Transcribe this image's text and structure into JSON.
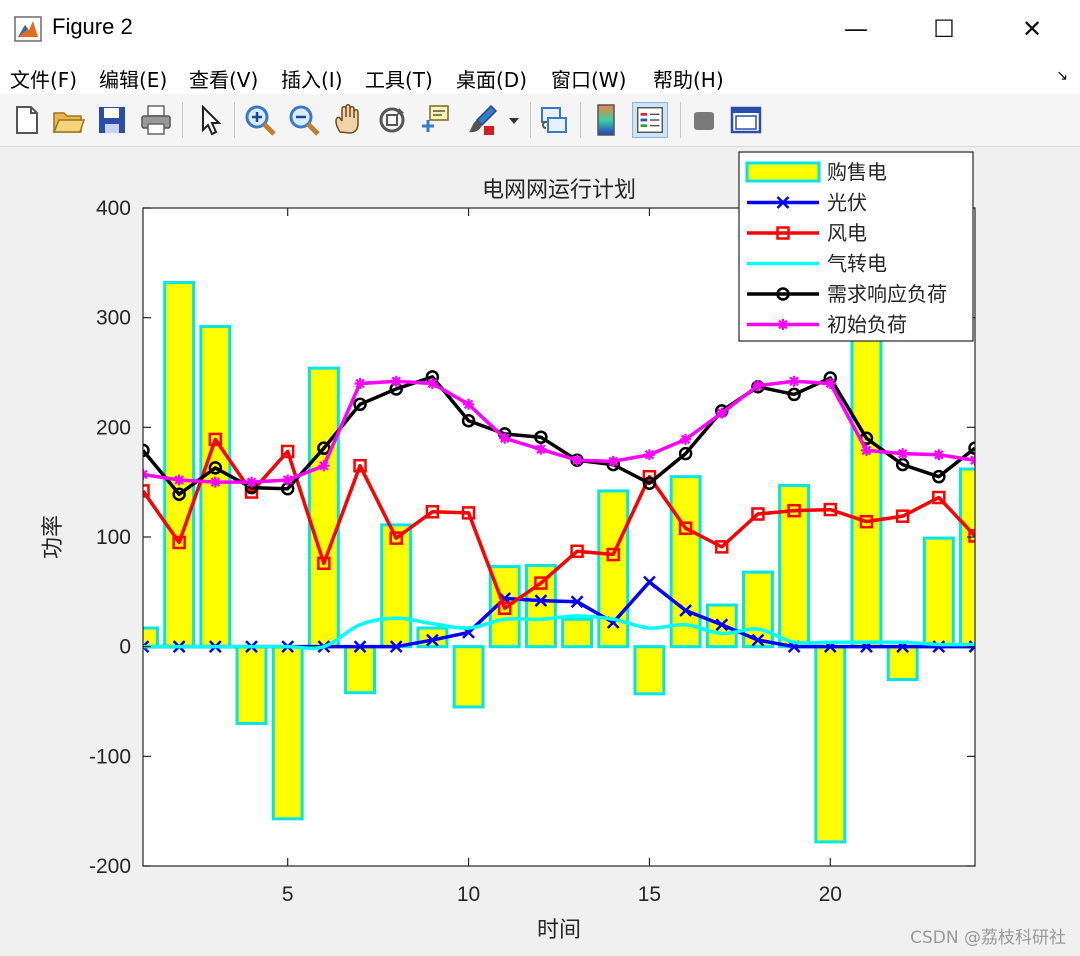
{
  "window": {
    "title": "Figure 2",
    "controls": {
      "minimize": "—",
      "maximize": "☐",
      "close": "✕"
    }
  },
  "menu": [
    "文件(F)",
    "编辑(E)",
    "查看(V)",
    "插入(I)",
    "工具(T)",
    "桌面(D)",
    "窗口(W)",
    "帮助(H)"
  ],
  "menu_overflow_glyph": "↘",
  "toolbar": [
    {
      "name": "new-figure-icon",
      "color": "#ffffff"
    },
    {
      "name": "open-file-icon",
      "color": "#e8b84a"
    },
    {
      "name": "save-icon",
      "color": "#2b4fa8"
    },
    {
      "name": "print-icon",
      "color": "#808080"
    },
    {
      "name": "pointer-icon",
      "color": "#333333"
    },
    {
      "name": "zoom-in-icon",
      "color": "#3a78c8"
    },
    {
      "name": "zoom-out-icon",
      "color": "#3a78c8"
    },
    {
      "name": "pan-hand-icon",
      "color": "#e0b080"
    },
    {
      "name": "rotate-3d-icon",
      "color": "#555555"
    },
    {
      "name": "data-cursor-icon",
      "color": "#e0c050"
    },
    {
      "name": "brush-icon",
      "color": "#d02020"
    },
    {
      "name": "link-plot-icon",
      "color": "#3a78c8"
    },
    {
      "name": "colorbar-icon",
      "color": "#f08040"
    },
    {
      "name": "legend-icon",
      "color": "#d03030"
    },
    {
      "name": "hide-tools-icon",
      "color": "#707070"
    },
    {
      "name": "dock-icon",
      "color": "#2b4fa8"
    }
  ],
  "watermark": "CSDN @荔枝科研社",
  "chart_data": {
    "type": "bar",
    "title": "电网网运行计划",
    "xlabel": "时间",
    "ylabel": "功率",
    "xlim": [
      1,
      24
    ],
    "ylim": [
      -200,
      400
    ],
    "xticks": [
      5,
      10,
      15,
      20
    ],
    "yticks": [
      -200,
      -100,
      0,
      100,
      200,
      300,
      400
    ],
    "grid": false,
    "legend_position": "top-right",
    "x": [
      1,
      2,
      3,
      4,
      5,
      6,
      7,
      8,
      9,
      10,
      11,
      12,
      13,
      14,
      15,
      16,
      17,
      18,
      19,
      20,
      21,
      22,
      23,
      24
    ],
    "series": [
      {
        "name": "购售电",
        "kind": "bar",
        "color": "#ffff00",
        "edge": "#00e5e5",
        "values": [
          17,
          332,
          292,
          -70,
          -157,
          254,
          -42,
          111,
          17,
          -55,
          73,
          74,
          25,
          142,
          -43,
          155,
          38,
          68,
          147,
          -178,
          290,
          -30,
          99,
          162
        ]
      },
      {
        "name": "光伏",
        "kind": "line",
        "color": "#0000ff",
        "marker": "x",
        "values": [
          0,
          0,
          0,
          0,
          0,
          0,
          0,
          0,
          6,
          13,
          44,
          42,
          41,
          22,
          59,
          33,
          20,
          6,
          0,
          0,
          0,
          0,
          0,
          0
        ]
      },
      {
        "name": "风电",
        "kind": "line",
        "color": "#ff0000",
        "marker": "square",
        "values": [
          142,
          95,
          189,
          141,
          178,
          76,
          165,
          99,
          123,
          122,
          35,
          58,
          87,
          84,
          155,
          108,
          91,
          121,
          124,
          125,
          114,
          119,
          136,
          101
        ]
      },
      {
        "name": "气转电",
        "kind": "line",
        "color": "#00ffff",
        "marker": "none",
        "values": [
          0,
          0,
          0,
          0,
          0,
          0,
          20,
          26,
          21,
          17,
          25,
          25,
          28,
          25,
          17,
          20,
          12,
          16,
          4,
          4,
          4,
          4,
          2,
          2
        ]
      },
      {
        "name": "需求响应负荷",
        "kind": "line",
        "color": "#000000",
        "marker": "circle",
        "values": [
          179,
          139,
          163,
          145,
          144,
          181,
          221,
          235,
          246,
          206,
          194,
          191,
          170,
          166,
          149,
          176,
          215,
          237,
          230,
          245,
          190,
          166,
          155,
          181
        ]
      },
      {
        "name": "初始负荷",
        "kind": "line",
        "color": "#ff00ff",
        "marker": "star",
        "values": [
          157,
          152,
          150,
          150,
          152,
          165,
          240,
          242,
          240,
          221,
          190,
          180,
          170,
          169,
          175,
          189,
          213,
          238,
          242,
          240,
          179,
          176,
          175,
          170
        ]
      }
    ]
  }
}
